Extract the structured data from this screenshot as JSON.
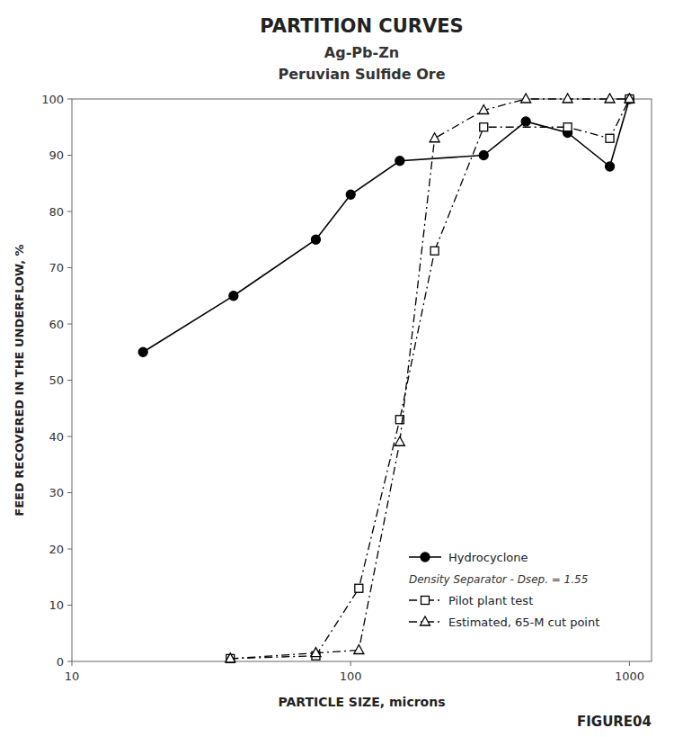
{
  "chart_data": {
    "type": "line",
    "title": "PARTITION CURVES",
    "subtitle": [
      "Ag-Pb-Zn",
      "Peruvian Sulfide Ore"
    ],
    "x_label": "PARTICLE SIZE, microns",
    "y_label": "FEED RECOVERED IN THE UNDERFLOW, %",
    "log": "x",
    "xlim": [
      10,
      1200
    ],
    "ylim": [
      0,
      100
    ],
    "xticks": [
      10,
      100,
      1000
    ],
    "yticks": [
      0,
      10,
      20,
      30,
      40,
      50,
      60,
      70,
      80,
      90,
      100
    ],
    "grid": false,
    "legend": "lower right",
    "series": [
      {
        "name": "Hydrocyclone",
        "color": "#000000",
        "marker": "circle",
        "line_style": "solid",
        "x": [
          18,
          38,
          75,
          100,
          150,
          300,
          425,
          600,
          850,
          1000
        ],
        "values": [
          55,
          65,
          75,
          83,
          89,
          90,
          96,
          94,
          88,
          100
        ]
      },
      {
        "name": "Pilot plant test",
        "color": "#000000",
        "marker": "open-square",
        "line_style": "dashdot",
        "x": [
          37,
          75,
          107,
          150,
          200,
          300,
          600,
          850,
          1000
        ],
        "values": [
          0.5,
          1,
          13,
          43,
          73,
          95,
          95,
          93,
          100
        ]
      },
      {
        "name": "Estimated, 65-M cut point",
        "color": "#000000",
        "marker": "open-triangle",
        "line_style": "dashdot",
        "x": [
          37,
          75,
          107,
          150,
          200,
          300,
          425,
          600,
          850,
          1000
        ],
        "values": [
          0.5,
          1.5,
          2,
          39,
          93,
          98,
          100,
          100,
          100,
          100
        ]
      }
    ],
    "annotations": [
      {
        "text": "Density Separator - Dsep. = 1.55"
      },
      {
        "text": "FIGURE04"
      }
    ]
  }
}
